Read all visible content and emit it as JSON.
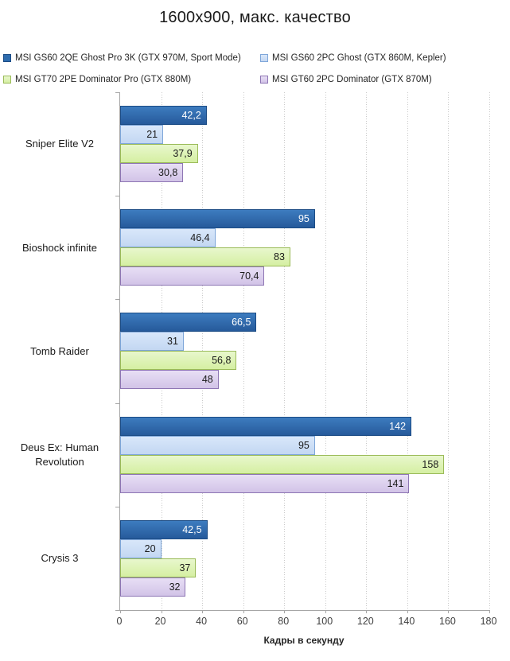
{
  "title": "1600x900, макс. качество",
  "chart_data": {
    "type": "bar",
    "orientation": "horizontal",
    "title": "1600x900, макс. качество",
    "xlabel": "Кадры  в секунду",
    "xlim": [
      0,
      180
    ],
    "x_ticks": [
      0,
      20,
      40,
      60,
      80,
      100,
      120,
      140,
      160,
      180
    ],
    "x_tick_labels": [
      "0",
      "20",
      "40",
      "60",
      "80",
      "100",
      "120",
      "140",
      "160",
      "180"
    ],
    "grid": "vertical-dotted",
    "legend_position": "top",
    "categories": [
      "Sniper Elite V2",
      "Bioshock infinite",
      "Tomb Raider",
      "Deus Ex: Human Revolution",
      "Crysis 3"
    ],
    "series": [
      {
        "name": "MSI GS60 2QE Ghost Pro 3K (GTX 970M, Sport Mode)",
        "values": [
          42.2,
          95,
          66.5,
          142,
          42.5
        ],
        "labels": [
          "42,2",
          "95",
          "66,5",
          "142",
          "42,5"
        ],
        "color": "#2e6cae",
        "fill_top": "#3d7cbf",
        "fill_bottom": "#265a9b",
        "border": "#1c4c85",
        "label_color": "#ffffff"
      },
      {
        "name": "MSI GS60 2PC Ghost (GTX 860M, Kepler)",
        "values": [
          21,
          46.4,
          31,
          95,
          20
        ],
        "labels": [
          "21",
          "46,4",
          "31",
          "95",
          "20"
        ],
        "color": "#c6d9f1",
        "fill_top": "#d9e7fa",
        "fill_bottom": "#c3d7f2",
        "border": "#7ea6d9",
        "label_color": "#1a1a1a"
      },
      {
        "name": "MSI GT70 2PE Dominator Pro (GTX 880M)",
        "values": [
          37.9,
          83,
          56.8,
          158,
          37
        ],
        "labels": [
          "37,9",
          "83",
          "56,8",
          "158",
          "37"
        ],
        "color": "#d9f0a5",
        "fill_top": "#e8f7cd",
        "fill_bottom": "#d5efa2",
        "border": "#9bbb59",
        "label_color": "#1a1a1a"
      },
      {
        "name": "MSI GT60 2PC Dominator (GTX 870M)",
        "values": [
          30.8,
          70.4,
          48,
          141,
          32
        ],
        "labels": [
          "30,8",
          "70,4",
          "48",
          "141",
          "32"
        ],
        "color": "#d5c6e8",
        "fill_top": "#e8dff5",
        "fill_bottom": "#d2c3e7",
        "border": "#8e76b4",
        "label_color": "#1a1a1a"
      }
    ]
  }
}
